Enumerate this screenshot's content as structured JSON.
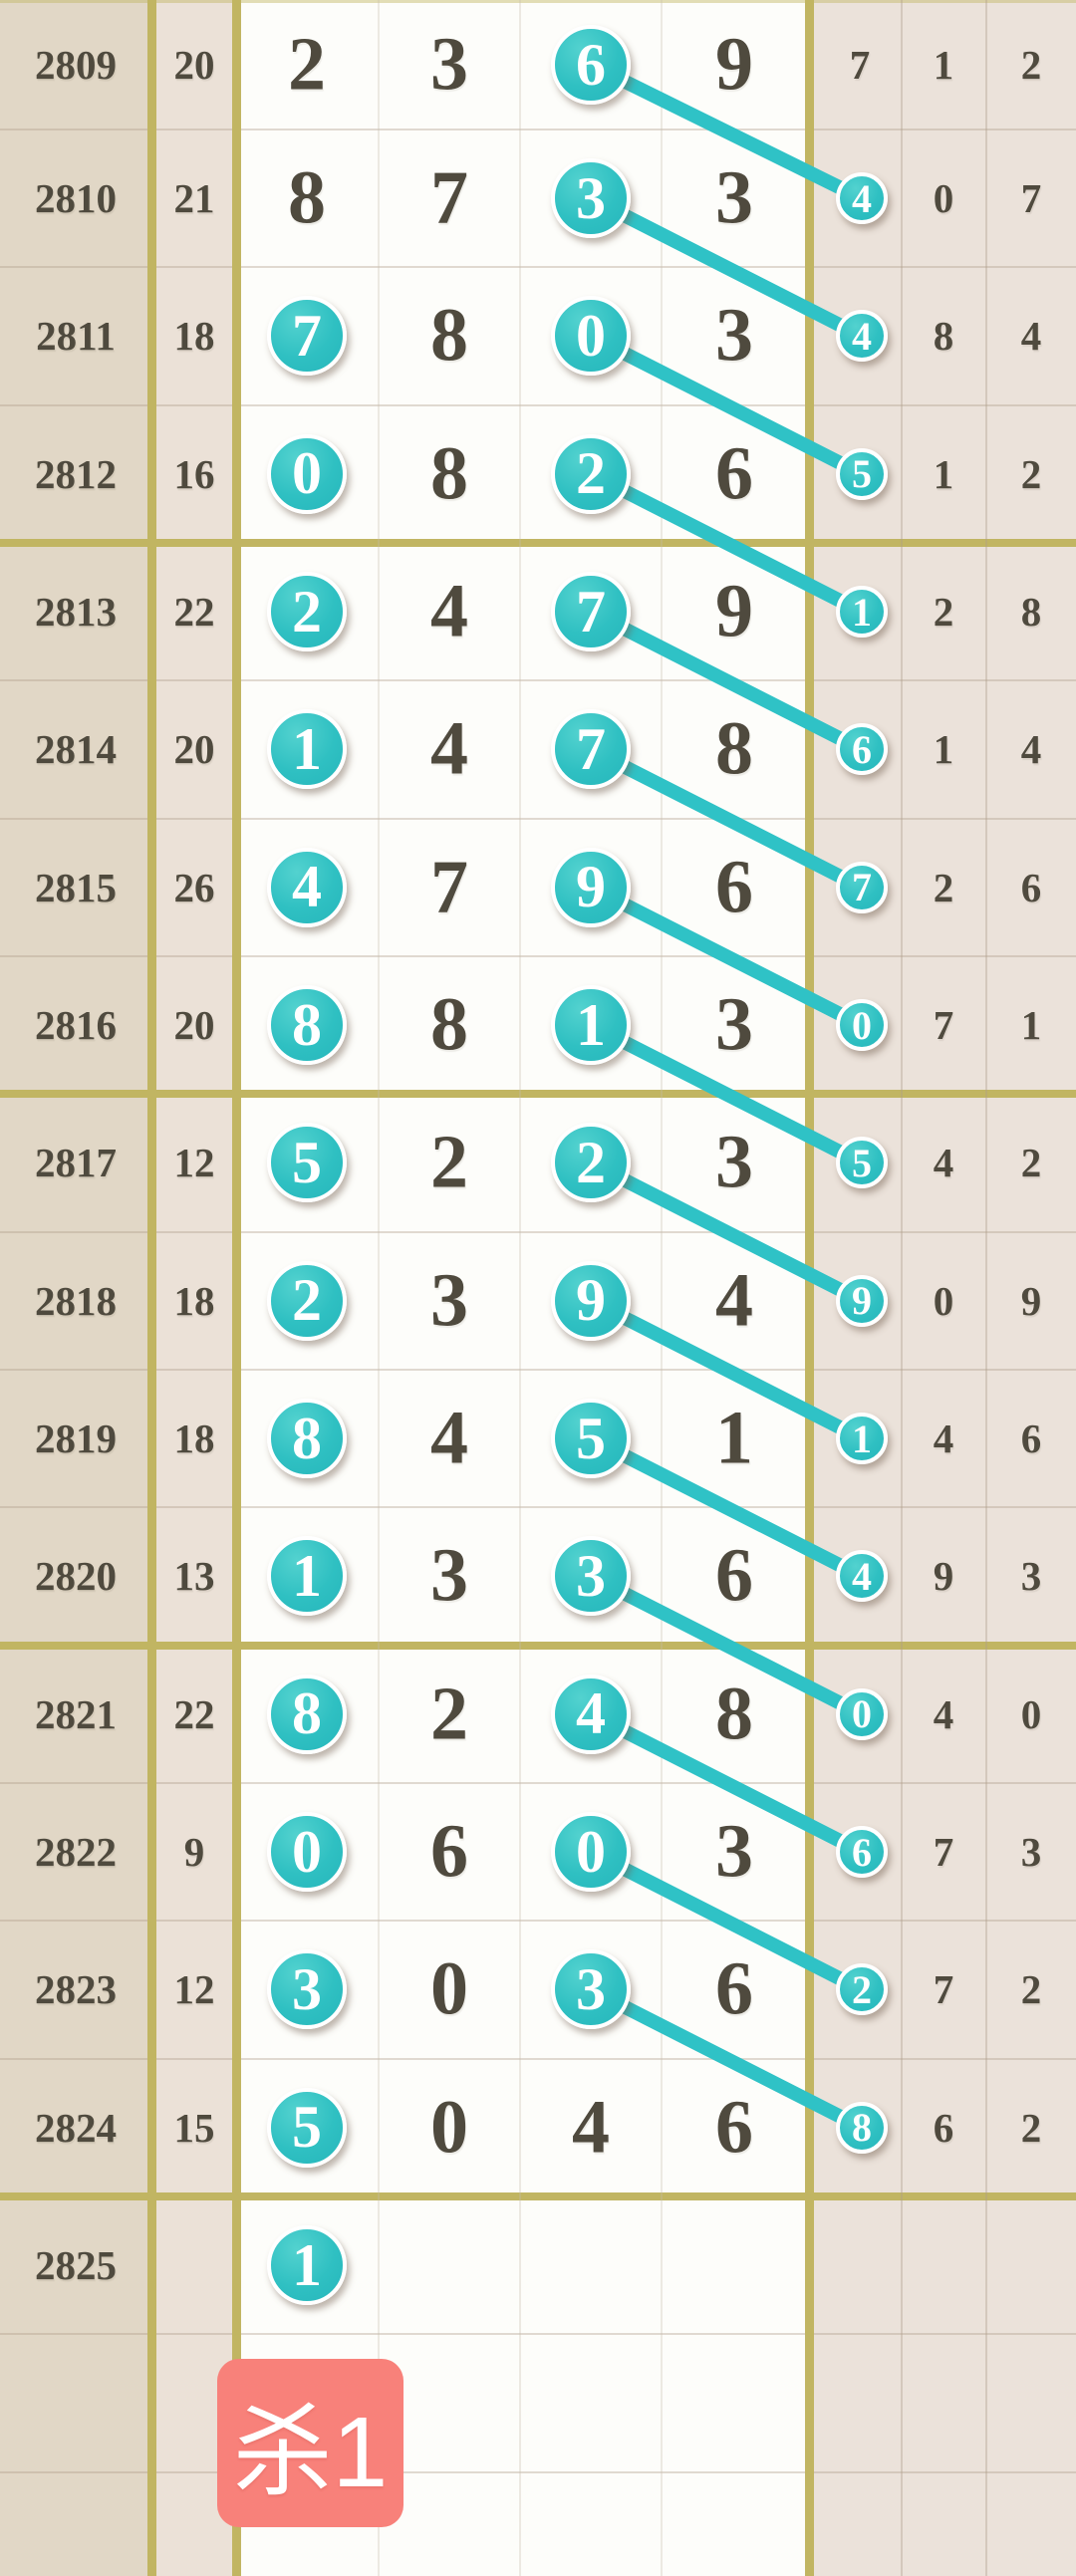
{
  "badge": {
    "label": "杀1"
  },
  "style": {
    "teal": "#2fc2c6",
    "olive": "#c1b562",
    "digit_color": "#4f4a3e",
    "issue_col_bg": "#e1d7c6",
    "sum_col_bg": "#ebe1d7",
    "white_col_bg": "#fdfdfa",
    "right_col_bg": "#ebe2da",
    "badge_bg": "#f8817a"
  },
  "chart_data": {
    "type": "table",
    "description": "Lottery number trend table: issue number, sum, four drawn digits (teal circles mark highlighted digits), a circled trail digit column connected by diagonal teal lines from the previous row's circled third digit, and two extra digit columns.",
    "rows": [
      {
        "issue": "2809",
        "sum": "20",
        "digits": [
          "2",
          "3",
          "6",
          "9"
        ],
        "circled": [
          false,
          false,
          true,
          false
        ],
        "tail": "7",
        "tail_circled": false,
        "extras": [
          "1",
          "2"
        ]
      },
      {
        "issue": "2810",
        "sum": "21",
        "digits": [
          "8",
          "7",
          "3",
          "3"
        ],
        "circled": [
          false,
          false,
          true,
          false
        ],
        "tail": "4",
        "tail_circled": true,
        "extras": [
          "0",
          "7"
        ]
      },
      {
        "issue": "2811",
        "sum": "18",
        "digits": [
          "7",
          "8",
          "0",
          "3"
        ],
        "circled": [
          true,
          false,
          true,
          false
        ],
        "tail": "4",
        "tail_circled": true,
        "extras": [
          "8",
          "4"
        ]
      },
      {
        "issue": "2812",
        "sum": "16",
        "digits": [
          "0",
          "8",
          "2",
          "6"
        ],
        "circled": [
          true,
          false,
          true,
          false
        ],
        "tail": "5",
        "tail_circled": true,
        "extras": [
          "1",
          "2"
        ]
      },
      {
        "issue": "2813",
        "sum": "22",
        "digits": [
          "2",
          "4",
          "7",
          "9"
        ],
        "circled": [
          true,
          false,
          true,
          false
        ],
        "tail": "1",
        "tail_circled": true,
        "extras": [
          "2",
          "8"
        ]
      },
      {
        "issue": "2814",
        "sum": "20",
        "digits": [
          "1",
          "4",
          "7",
          "8"
        ],
        "circled": [
          true,
          false,
          true,
          false
        ],
        "tail": "6",
        "tail_circled": true,
        "extras": [
          "1",
          "4"
        ]
      },
      {
        "issue": "2815",
        "sum": "26",
        "digits": [
          "4",
          "7",
          "9",
          "6"
        ],
        "circled": [
          true,
          false,
          true,
          false
        ],
        "tail": "7",
        "tail_circled": true,
        "extras": [
          "2",
          "6"
        ]
      },
      {
        "issue": "2816",
        "sum": "20",
        "digits": [
          "8",
          "8",
          "1",
          "3"
        ],
        "circled": [
          true,
          false,
          true,
          false
        ],
        "tail": "0",
        "tail_circled": true,
        "extras": [
          "7",
          "1"
        ]
      },
      {
        "issue": "2817",
        "sum": "12",
        "digits": [
          "5",
          "2",
          "2",
          "3"
        ],
        "circled": [
          true,
          false,
          true,
          false
        ],
        "tail": "5",
        "tail_circled": true,
        "extras": [
          "4",
          "2"
        ]
      },
      {
        "issue": "2818",
        "sum": "18",
        "digits": [
          "2",
          "3",
          "9",
          "4"
        ],
        "circled": [
          true,
          false,
          true,
          false
        ],
        "tail": "9",
        "tail_circled": true,
        "extras": [
          "0",
          "9"
        ]
      },
      {
        "issue": "2819",
        "sum": "18",
        "digits": [
          "8",
          "4",
          "5",
          "1"
        ],
        "circled": [
          true,
          false,
          true,
          false
        ],
        "tail": "1",
        "tail_circled": true,
        "extras": [
          "4",
          "6"
        ]
      },
      {
        "issue": "2820",
        "sum": "13",
        "digits": [
          "1",
          "3",
          "3",
          "6"
        ],
        "circled": [
          true,
          false,
          true,
          false
        ],
        "tail": "4",
        "tail_circled": true,
        "extras": [
          "9",
          "3"
        ]
      },
      {
        "issue": "2821",
        "sum": "22",
        "digits": [
          "8",
          "2",
          "4",
          "8"
        ],
        "circled": [
          true,
          false,
          true,
          false
        ],
        "tail": "0",
        "tail_circled": true,
        "extras": [
          "4",
          "0"
        ]
      },
      {
        "issue": "2822",
        "sum": "9",
        "digits": [
          "0",
          "6",
          "0",
          "3"
        ],
        "circled": [
          true,
          false,
          true,
          false
        ],
        "tail": "6",
        "tail_circled": true,
        "extras": [
          "7",
          "3"
        ]
      },
      {
        "issue": "2823",
        "sum": "12",
        "digits": [
          "3",
          "0",
          "3",
          "6"
        ],
        "circled": [
          true,
          false,
          true,
          false
        ],
        "tail": "2",
        "tail_circled": true,
        "extras": [
          "7",
          "2"
        ]
      },
      {
        "issue": "2824",
        "sum": "15",
        "digits": [
          "5",
          "0",
          "4",
          "6"
        ],
        "circled": [
          true,
          false,
          false,
          false
        ],
        "tail": "8",
        "tail_circled": true,
        "extras": [
          "6",
          "2"
        ]
      },
      {
        "issue": "2825",
        "sum": "",
        "digits": [
          "1",
          "",
          "",
          ""
        ],
        "circled": [
          true,
          false,
          false,
          false
        ],
        "tail": "",
        "tail_circled": false,
        "extras": [
          "",
          ""
        ]
      }
    ],
    "links_rule": "row N circled 3rd digit connects diagonally to row N+1 circled tail digit"
  }
}
